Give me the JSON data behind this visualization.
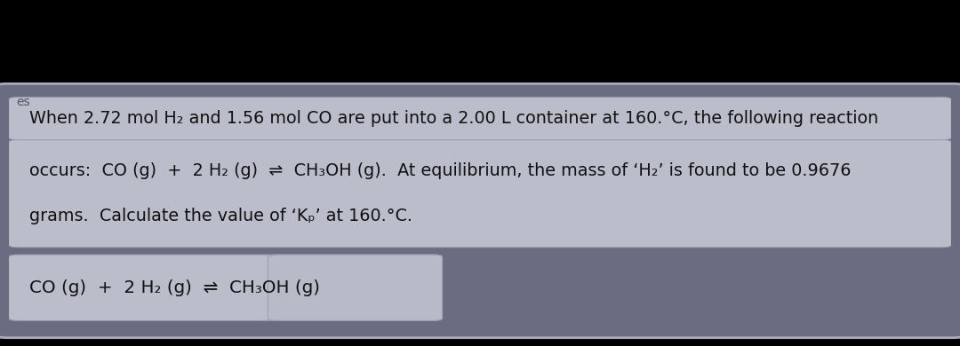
{
  "bg_top_color": "#000000",
  "panel_color": "#6a6d82",
  "box_color": "#c5c7d4",
  "text_color": "#111111",
  "line1": "When 2.72 mol H₂ and 1.56 mol CO are put into a 2.00 L container at 160.°C, the following reaction",
  "line2": "occurs:  CO (g)  +  2 H₂ (g)  ⇌  CH₃OH (g).  At equilibrium, the mass of ‘H₂’ is found to be 0.9676",
  "line3": "grams.  Calculate the value of ‘Kₚ’ at 160.°C.",
  "bottom_eq": "CO (g)  +  2 H₂ (g)  ⇌  CH₃OH (g)",
  "font_size": 13.8
}
